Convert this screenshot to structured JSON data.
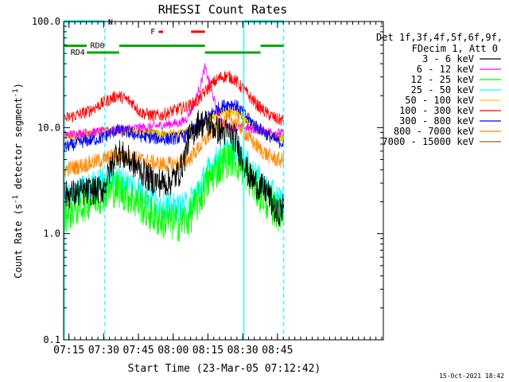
{
  "chart_data": {
    "type": "line",
    "title": "RHESSI Count Rates",
    "xlabel": "Start Time (23-Mar-05 07:12:42)",
    "ylabel": "Count Rate (s⁻¹ detector segment⁻¹)",
    "ylabel_parts": {
      "base": "Count Rate (s",
      "sup1": "-1",
      "mid": " detector segment",
      "sup2": "-1",
      "end": ")"
    },
    "y_scale": "log",
    "ylim": [
      0.1,
      100.0
    ],
    "y_ticks": [
      "0.1",
      "1.0",
      "10.0",
      "100.0"
    ],
    "x_range_min": [
      0,
      138
    ],
    "x_ticks": [
      {
        "label": "07:15",
        "min": 2.3
      },
      {
        "label": "07:30",
        "min": 17.3
      },
      {
        "label": "07:45",
        "min": 32.3
      },
      {
        "label": "08:00",
        "min": 47.3
      },
      {
        "label": "08:15",
        "min": 62.3
      },
      {
        "label": "08:30",
        "min": 77.3
      },
      {
        "label": "08:45",
        "min": 92.3
      }
    ],
    "legend": {
      "placement": "right",
      "header": [
        "Det 1f,3f,4f,5f,6f,9f,",
        "FDecim 1, Att 0"
      ],
      "entries": [
        {
          "label": "3 - 6 keV",
          "color": "#000000"
        },
        {
          "label": "6 - 12 keV",
          "color": "#ff00ff"
        },
        {
          "label": "12 - 25 keV",
          "color": "#00ff00"
        },
        {
          "label": "25 - 50 keV",
          "color": "#00ffff"
        },
        {
          "label": "50 - 100 keV",
          "color": "#ffcc00"
        },
        {
          "label": "100 - 300 keV",
          "color": "#ff0000"
        },
        {
          "label": "300 - 800 keV",
          "color": "#0000ff"
        },
        {
          "label": "800 - 7000 keV",
          "color": "#ff8800"
        },
        {
          "label": "7000 - 15000 keV",
          "color": "#996600"
        }
      ]
    },
    "series": [
      {
        "name": "3 - 6 keV",
        "color": "#000000",
        "x": [
          0,
          10,
          17,
          23,
          28,
          33,
          38,
          42,
          46,
          50,
          52,
          54,
          56,
          58,
          60,
          62,
          64,
          66,
          68,
          70,
          72,
          74,
          76,
          80,
          84,
          88,
          92,
          96
        ],
        "y": [
          2.3,
          2.5,
          2.6,
          6.0,
          5.0,
          4.0,
          3.2,
          3.0,
          3.1,
          3.8,
          5.0,
          8.0,
          9.0,
          11.0,
          11.0,
          11.0,
          10.5,
          9.5,
          9.2,
          9.0,
          8.8,
          8.0,
          6.0,
          3.5,
          2.8,
          2.5,
          1.5,
          1.9
        ]
      },
      {
        "name": "6 - 12 keV",
        "color": "#ff00ff",
        "x": [
          0,
          10,
          17,
          23,
          28,
          33,
          38,
          42,
          46,
          48,
          50,
          53,
          56,
          59,
          61,
          64,
          66,
          68,
          70,
          74,
          78,
          84,
          88,
          92,
          96
        ],
        "y": [
          8.5,
          9.0,
          9.2,
          9.5,
          9.8,
          10.0,
          10.2,
          10.5,
          10.8,
          11.0,
          11.0,
          12.0,
          16.0,
          25.0,
          37.0,
          22.0,
          15.0,
          12.0,
          10.5,
          10.0,
          10.0,
          9.5,
          9.3,
          9.0,
          8.8
        ]
      },
      {
        "name": "12 - 25 keV",
        "color": "#00ff00",
        "x": [
          0,
          10,
          17,
          23,
          28,
          33,
          38,
          42,
          46,
          50,
          54,
          58,
          62,
          66,
          70,
          72,
          74,
          76,
          80,
          84,
          88,
          92,
          96
        ],
        "y": [
          1.5,
          2.0,
          2.4,
          2.7,
          2.3,
          1.9,
          1.5,
          1.35,
          1.3,
          1.25,
          1.4,
          2.0,
          3.0,
          4.0,
          5.0,
          5.2,
          5.0,
          4.5,
          3.4,
          2.5,
          2.0,
          1.6,
          1.5
        ]
      },
      {
        "name": "25 - 50 keV",
        "color": "#00ffff",
        "x": [
          0,
          10,
          17,
          23,
          28,
          33,
          38,
          42,
          46,
          50,
          54,
          58,
          62,
          66,
          70,
          72,
          74,
          76,
          80,
          84,
          88,
          92,
          96
        ],
        "y": [
          2.2,
          2.7,
          3.2,
          3.4,
          3.0,
          2.6,
          2.1,
          1.9,
          1.8,
          1.75,
          1.9,
          2.6,
          3.8,
          5.0,
          6.0,
          6.2,
          6.0,
          5.5,
          4.3,
          3.3,
          2.6,
          2.2,
          2.0
        ]
      },
      {
        "name": "50 - 100 keV",
        "color": "#ffcc00",
        "x": [
          0,
          10,
          17,
          23,
          28,
          33,
          38,
          42,
          46,
          50,
          54,
          58,
          62,
          66,
          70,
          72,
          74,
          76,
          80,
          84,
          88,
          92,
          96
        ],
        "y": [
          8.0,
          8.5,
          9.0,
          9.5,
          9.3,
          9.0,
          8.8,
          8.6,
          8.5,
          8.6,
          9.0,
          10.0,
          11.5,
          13.0,
          14.0,
          14.2,
          14.0,
          13.0,
          11.0,
          9.5,
          8.5,
          8.0,
          7.8
        ]
      },
      {
        "name": "100 - 300 keV",
        "color": "#ff0000",
        "x": [
          0,
          10,
          17,
          23,
          26,
          30,
          33,
          38,
          42,
          46,
          50,
          54,
          58,
          62,
          66,
          68,
          70,
          72,
          74,
          76,
          80,
          84,
          88,
          92,
          96
        ],
        "y": [
          12.0,
          14.0,
          17.0,
          20.0,
          19.0,
          17.0,
          14.0,
          13.0,
          13.0,
          14.0,
          15.0,
          16.0,
          18.0,
          23.0,
          28.0,
          30.0,
          30.5,
          30.0,
          28.0,
          25.0,
          20.0,
          16.0,
          13.5,
          12.0,
          11.5
        ]
      },
      {
        "name": "300 - 800 keV",
        "color": "#0000ff",
        "x": [
          0,
          10,
          17,
          23,
          28,
          33,
          38,
          42,
          46,
          50,
          54,
          58,
          62,
          66,
          70,
          72,
          74,
          76,
          80,
          84,
          88,
          92,
          96
        ],
        "y": [
          6.5,
          7.5,
          8.0,
          9.5,
          9.0,
          8.3,
          8.0,
          7.8,
          7.8,
          8.0,
          8.5,
          10.0,
          12.5,
          15.0,
          16.5,
          16.8,
          16.5,
          15.0,
          12.0,
          10.0,
          8.5,
          7.5,
          7.0
        ]
      },
      {
        "name": "800 - 7000 keV",
        "color": "#ff8800",
        "x": [
          0,
          10,
          17,
          23,
          28,
          33,
          38,
          42,
          46,
          50,
          54,
          58,
          62,
          66,
          70,
          72,
          74,
          76,
          80,
          84,
          88,
          92,
          96
        ],
        "y": [
          4.0,
          4.5,
          5.0,
          5.5,
          5.3,
          5.0,
          4.7,
          4.5,
          4.5,
          4.6,
          5.0,
          6.3,
          8.0,
          10.0,
          11.5,
          11.8,
          11.5,
          10.5,
          8.0,
          6.5,
          5.5,
          5.0,
          4.8
        ]
      },
      {
        "name": "7000 - 15000 keV",
        "color": "#996600",
        "x": [
          0,
          10,
          17,
          23,
          28,
          33,
          38,
          42,
          46,
          50,
          54,
          58,
          62,
          66,
          70,
          72,
          74,
          76,
          80,
          84,
          88,
          92,
          96
        ],
        "y": [
          8.2,
          8.8,
          9.3,
          9.8,
          9.6,
          9.2,
          9.0,
          8.8,
          8.7,
          8.8,
          9.2,
          10.3,
          11.8,
          13.3,
          14.3,
          14.5,
          14.3,
          13.3,
          11.3,
          9.8,
          8.8,
          8.2,
          8.0
        ]
      }
    ],
    "vertical_lines": [
      {
        "min": 0.3,
        "style": "solid",
        "color": "#00ffff"
      },
      {
        "min": 17.8,
        "style": "dashed",
        "color": "#00ffff"
      },
      {
        "min": 77.8,
        "style": "solid",
        "color": "#00ffff"
      },
      {
        "min": 95.0,
        "style": "dashed",
        "color": "#00ffff"
      }
    ],
    "annotations": [
      {
        "type": "bar",
        "color": "#00ffff",
        "y": 100,
        "x0": 0.3,
        "x1": 17.8
      },
      {
        "type": "bar",
        "color": "#00ffff",
        "y": 100,
        "x0": 77.8,
        "x1": 95.0
      },
      {
        "type": "label",
        "text": "N",
        "color": "#00ffff",
        "x": 19.2,
        "y": 100
      },
      {
        "type": "bar",
        "color": "#00aa00",
        "y": 59,
        "x0": 0.3,
        "x1": 10.0
      },
      {
        "type": "bar",
        "color": "#00aa00",
        "y": 59,
        "x0": 24.0,
        "x1": 61.0
      },
      {
        "type": "bar",
        "color": "#00aa00",
        "y": 59,
        "x0": 85.0,
        "x1": 95.0
      },
      {
        "type": "label",
        "text": "RD0",
        "color": "#00aa00",
        "x": 11.5,
        "y": 60
      },
      {
        "type": "bar",
        "color": "#00aa00",
        "y": 51,
        "x0": 10.0,
        "x1": 24.0
      },
      {
        "type": "bar",
        "color": "#00aa00",
        "y": 51,
        "x0": 61.0,
        "x1": 85.0
      },
      {
        "type": "label",
        "text": "RD4",
        "color": "#00aa00",
        "x": 3.0,
        "y": 52
      },
      {
        "type": "label",
        "text": "F",
        "color": "#ff0000",
        "x": 37.5,
        "y": 81
      },
      {
        "type": "bar",
        "color": "#ff0000",
        "y": 80,
        "x0": 41.0,
        "x1": 43.0
      },
      {
        "type": "bar",
        "color": "#ff0000",
        "y": 80,
        "x0": 55.0,
        "x1": 61.0
      }
    ],
    "timestamp": "15-Oct-2021 18:42"
  }
}
